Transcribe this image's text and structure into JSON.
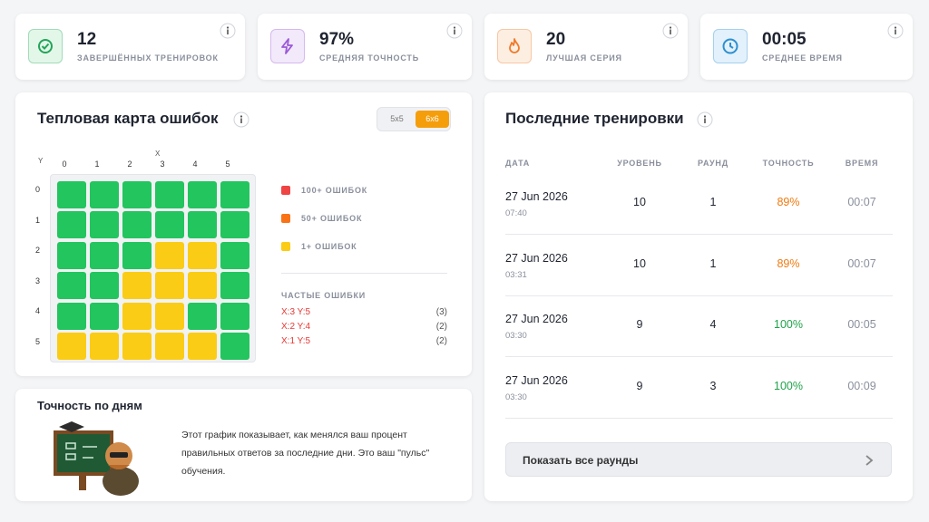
{
  "stats": [
    {
      "value": "12",
      "label": "ЗАВЕРШЁННЫХ ТРЕНИРОВОК",
      "color": "#22a55a",
      "bg": "#e3f7e9"
    },
    {
      "value": "97%",
      "label": "СРЕДНЯЯ ТОЧНОСТЬ",
      "color": "#9b59d6",
      "bg": "#f2e9fb"
    },
    {
      "value": "20",
      "label": "ЛУЧШАЯ СЕРИЯ",
      "color": "#f07a2a",
      "bg": "#fdeee2"
    },
    {
      "value": "00:05",
      "label": "СРЕДНЕЕ ВРЕМЯ",
      "color": "#2f8fd1",
      "bg": "#e2f1fb"
    }
  ],
  "heatmap": {
    "title": "Тепловая карта ошибок",
    "toggle": [
      "5x5",
      "6x6"
    ],
    "active_toggle": 1,
    "x_axis_label": "X",
    "y_axis_label": "Y",
    "x_ticks": [
      "0",
      "1",
      "2",
      "3",
      "4",
      "5"
    ],
    "y_ticks": [
      "0",
      "1",
      "2",
      "3",
      "4",
      "5"
    ],
    "cells": [
      [
        "#22c55e",
        "#22c55e",
        "#22c55e",
        "#22c55e",
        "#22c55e",
        "#22c55e"
      ],
      [
        "#22c55e",
        "#22c55e",
        "#22c55e",
        "#22c55e",
        "#22c55e",
        "#22c55e"
      ],
      [
        "#22c55e",
        "#22c55e",
        "#22c55e",
        "#facc15",
        "#facc15",
        "#22c55e"
      ],
      [
        "#22c55e",
        "#22c55e",
        "#facc15",
        "#facc15",
        "#facc15",
        "#22c55e"
      ],
      [
        "#22c55e",
        "#22c55e",
        "#facc15",
        "#facc15",
        "#22c55e",
        "#22c55e"
      ],
      [
        "#facc15",
        "#facc15",
        "#facc15",
        "#facc15",
        "#facc15",
        "#22c55e"
      ]
    ],
    "legend": [
      {
        "label": "100+ ОШИБОК",
        "color": "#ef4444"
      },
      {
        "label": "50+ ОШИБОК",
        "color": "#f97316"
      },
      {
        "label": "1+ ОШИБОК",
        "color": "#facc15"
      }
    ],
    "frequent_title": "ЧАСТЫЕ ОШИБКИ",
    "frequent": [
      {
        "cell": "X:3 Y:5",
        "count": "(3)"
      },
      {
        "cell": "X:2 Y:4",
        "count": "(2)"
      },
      {
        "cell": "X:1 Y:5",
        "count": "(2)"
      }
    ]
  },
  "accuracy": {
    "title": "Точность по дням",
    "text": "Этот график показывает, как менялся ваш процент правильных ответов за последние дни. Это ваш \"пульс\" обучения."
  },
  "recent": {
    "title": "Последние тренировки",
    "headers": [
      "ДАТА",
      "УРОВЕНЬ",
      "РАУНД",
      "ТОЧНОСТЬ",
      "ВРЕМЯ"
    ],
    "rows": [
      {
        "date": "27 Jun 2026",
        "time": "07:40",
        "level": "10",
        "round": "1",
        "accuracy": "89%",
        "accuracy_color": "#f07a10",
        "duration": "00:07"
      },
      {
        "date": "27 Jun 2026",
        "time": "03:31",
        "level": "10",
        "round": "1",
        "accuracy": "89%",
        "accuracy_color": "#f07a10",
        "duration": "00:07"
      },
      {
        "date": "27 Jun 2026",
        "time": "03:30",
        "level": "9",
        "round": "4",
        "accuracy": "100%",
        "accuracy_color": "#1fa24a",
        "duration": "00:05"
      },
      {
        "date": "27 Jun 2026",
        "time": "03:30",
        "level": "9",
        "round": "3",
        "accuracy": "100%",
        "accuracy_color": "#1fa24a",
        "duration": "00:09"
      }
    ],
    "button": "Показать все раунды"
  }
}
